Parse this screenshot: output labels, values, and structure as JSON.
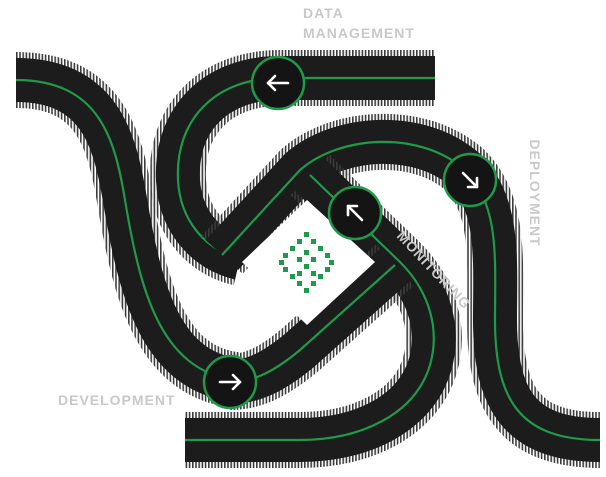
{
  "labels": {
    "data_line1": "DATA",
    "data_line2": "MANAGEMENT",
    "deployment": "DEPLOYMENT",
    "monitoring": "MONITORING",
    "development": "DEVELOPMENT"
  },
  "colors": {
    "road": "#1c1c1c",
    "road_edge": "#333333",
    "lane_line": "#1f9a4a",
    "label_text": "#c9c9c9",
    "badge_fill": "#141414",
    "badge_ring": "#1f9a4a",
    "badge_arrow": "#ffffff",
    "center_icon": "#1f9a4a"
  },
  "badges": [
    {
      "name": "arrow-left-badge",
      "icon": "arrow-left-icon"
    },
    {
      "name": "arrow-down-right-badge",
      "icon": "arrow-down-right-icon"
    },
    {
      "name": "arrow-up-left-badge",
      "icon": "arrow-up-left-icon"
    },
    {
      "name": "arrow-right-badge",
      "icon": "arrow-right-icon"
    }
  ],
  "center_icon": "pixel-logo-icon"
}
